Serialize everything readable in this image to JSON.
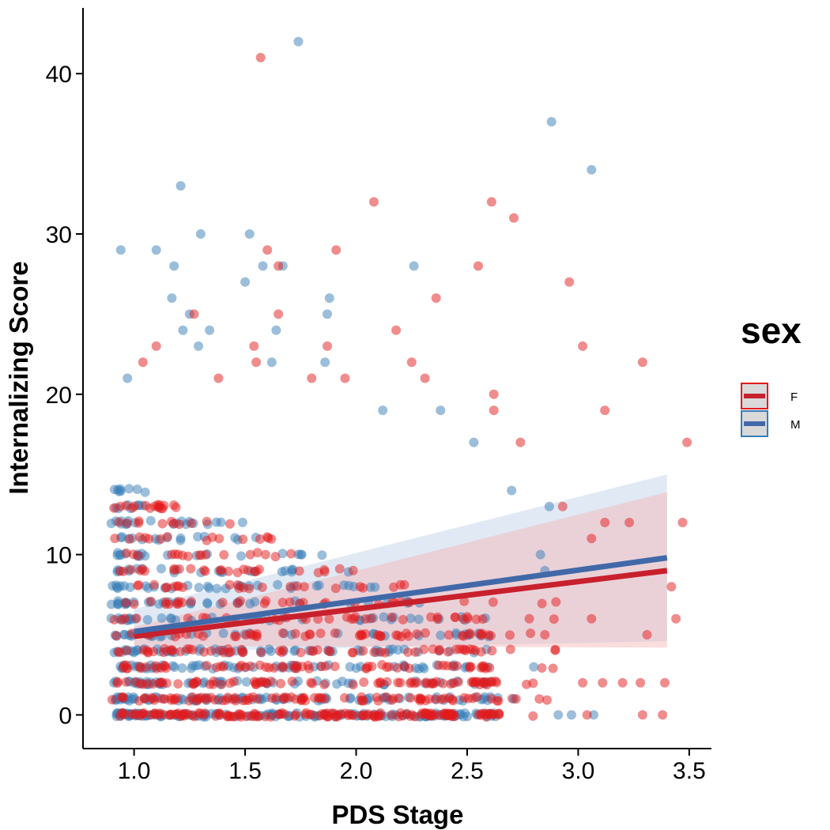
{
  "chart_data": {
    "type": "scatter",
    "title": "",
    "xlabel": "PDS Stage",
    "ylabel": "Internalizing Score",
    "xlim": [
      0.77,
      3.6
    ],
    "ylim": [
      -2.1,
      44.1
    ],
    "x_ticks": [
      1.0,
      1.5,
      2.0,
      2.5,
      3.0,
      3.5
    ],
    "x_tick_labels": [
      "1.0",
      "1.5",
      "2.0",
      "2.5",
      "3.0",
      "3.5"
    ],
    "y_ticks": [
      0,
      10,
      20,
      30,
      40
    ],
    "y_tick_labels": [
      "0",
      "10",
      "20",
      "30",
      "40"
    ],
    "grid": false,
    "legend": {
      "title": "sex",
      "position": "right"
    },
    "series": [
      {
        "name": "F",
        "color": "#e41a1c",
        "line_color": "#c8202c",
        "ribbon_color": "#f6b3b5",
        "fit": {
          "x": [
            1.0,
            3.4
          ],
          "y": [
            4.9,
            9.0
          ]
        },
        "ribbon": {
          "x": [
            1.0,
            3.4
          ],
          "lower": [
            4.3,
            4.2
          ],
          "upper": [
            5.5,
            13.9
          ]
        },
        "outliers": [
          [
            1.57,
            41
          ],
          [
            2.08,
            32
          ],
          [
            2.61,
            32
          ],
          [
            2.71,
            31
          ],
          [
            1.6,
            29
          ],
          [
            1.91,
            29
          ],
          [
            1.65,
            28
          ],
          [
            2.55,
            28
          ],
          [
            2.96,
            27
          ],
          [
            1.65,
            25
          ],
          [
            2.36,
            26
          ],
          [
            1.27,
            25
          ],
          [
            1.87,
            23
          ],
          [
            1.54,
            23
          ],
          [
            1.1,
            23
          ],
          [
            3.02,
            23
          ],
          [
            2.18,
            24
          ],
          [
            1.04,
            22
          ],
          [
            1.55,
            22
          ],
          [
            3.29,
            22
          ],
          [
            2.25,
            22
          ],
          [
            1.95,
            21
          ],
          [
            2.31,
            21
          ],
          [
            1.8,
            21
          ],
          [
            1.38,
            21
          ],
          [
            3.12,
            19
          ],
          [
            2.62,
            20
          ],
          [
            2.62,
            19
          ],
          [
            3.49,
            17
          ],
          [
            2.74,
            17
          ],
          [
            3.47,
            12
          ],
          [
            3.12,
            12
          ],
          [
            3.23,
            12
          ],
          [
            2.93,
            13
          ],
          [
            3.06,
            11
          ],
          [
            3.42,
            8
          ],
          [
            3.44,
            6
          ],
          [
            3.31,
            5
          ],
          [
            3.06,
            6
          ],
          [
            3.28,
            2
          ],
          [
            3.39,
            2
          ],
          [
            3.2,
            2
          ],
          [
            3.11,
            2
          ],
          [
            3.02,
            2
          ],
          [
            3.29,
            0
          ],
          [
            3.38,
            0
          ],
          [
            3.04,
            0
          ],
          [
            2.85,
            5
          ],
          [
            2.78,
            6
          ],
          [
            2.72,
            1
          ]
        ]
      },
      {
        "name": "M",
        "color": "#377eb8",
        "line_color": "#4169a8",
        "ribbon_color": "#bcd0e6",
        "fit": {
          "x": [
            1.0,
            3.4
          ],
          "y": [
            5.2,
            9.8
          ]
        },
        "ribbon": {
          "x": [
            1.0,
            3.4
          ],
          "lower": [
            3.9,
            4.6
          ],
          "upper": [
            6.6,
            15.0
          ]
        },
        "outliers": [
          [
            1.74,
            42
          ],
          [
            2.88,
            37
          ],
          [
            3.06,
            34
          ],
          [
            1.21,
            33
          ],
          [
            0.94,
            29
          ],
          [
            1.1,
            29
          ],
          [
            1.3,
            30
          ],
          [
            1.52,
            30
          ],
          [
            1.18,
            28
          ],
          [
            1.58,
            28
          ],
          [
            1.67,
            28
          ],
          [
            2.26,
            28
          ],
          [
            1.88,
            26
          ],
          [
            1.5,
            27
          ],
          [
            1.17,
            26
          ],
          [
            1.25,
            25
          ],
          [
            1.22,
            24
          ],
          [
            1.34,
            24
          ],
          [
            1.64,
            24
          ],
          [
            1.87,
            25
          ],
          [
            1.29,
            23
          ],
          [
            1.62,
            22
          ],
          [
            0.97,
            21
          ],
          [
            1.86,
            22
          ],
          [
            2.38,
            19
          ],
          [
            2.12,
            19
          ],
          [
            2.53,
            17
          ],
          [
            2.7,
            14
          ],
          [
            2.87,
            13
          ],
          [
            2.85,
            9
          ],
          [
            2.83,
            10
          ],
          [
            2.8,
            3
          ],
          [
            2.91,
            0
          ],
          [
            2.97,
            0
          ],
          [
            3.07,
            0
          ],
          [
            2.71,
            1
          ]
        ]
      }
    ]
  }
}
